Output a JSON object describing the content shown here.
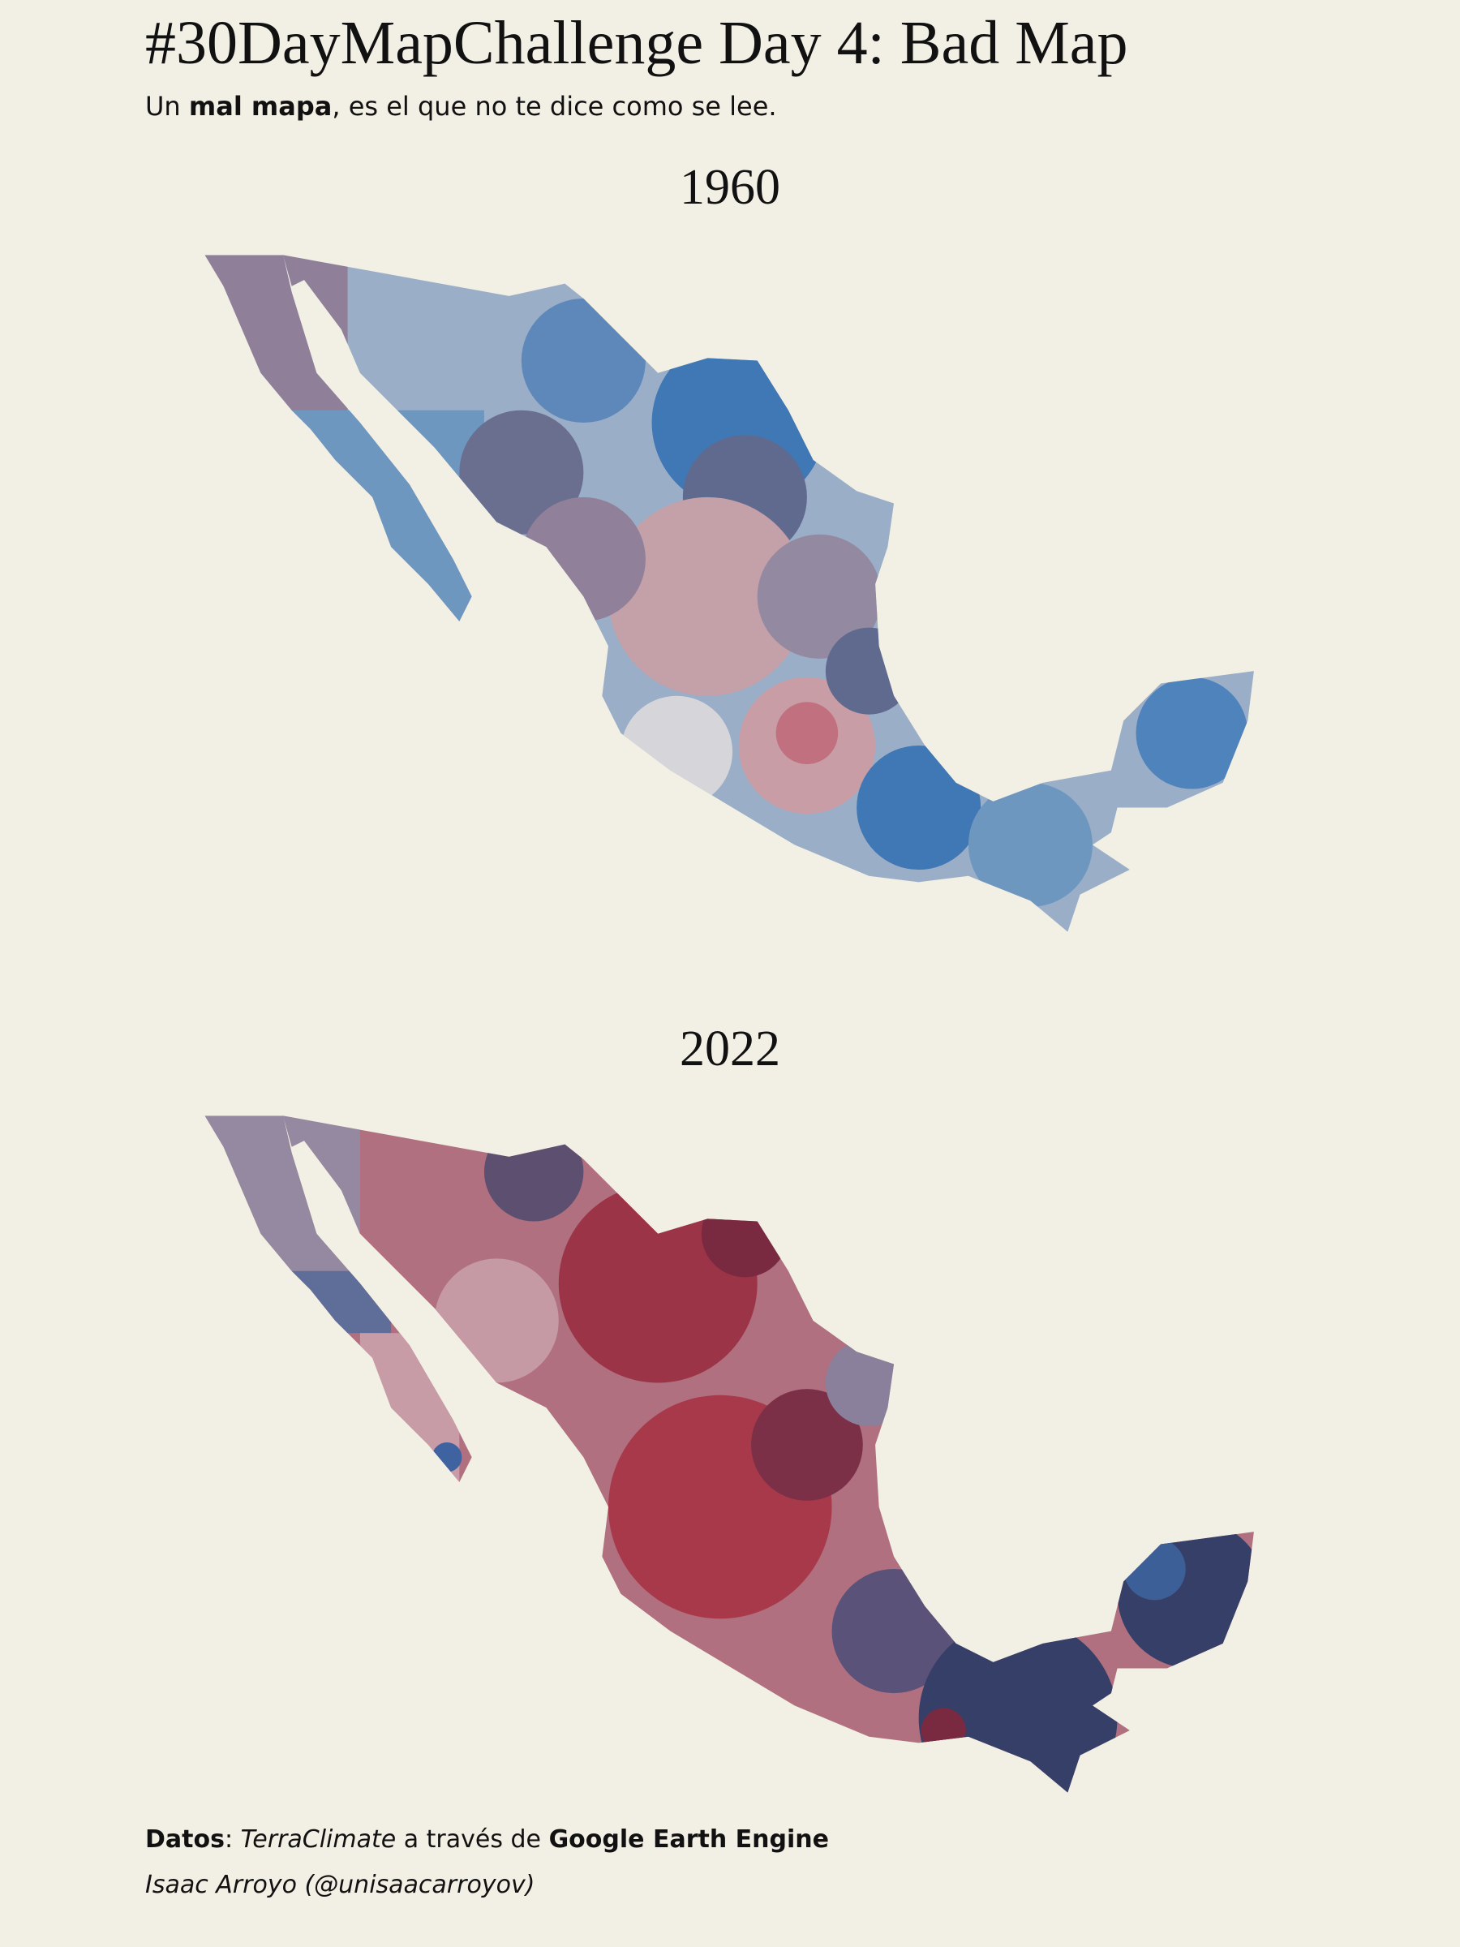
{
  "header": {
    "title": "#30DayMapChallenge Day 4: Bad Map",
    "subtitle": [
      "Un ",
      "mal mapa",
      ", es el que no te dice como se lee."
    ]
  },
  "maps": [
    {
      "title": "1960"
    },
    {
      "title": "2022"
    }
  ],
  "footer": {
    "source": [
      "Datos",
      ": ",
      "TerraClimate",
      " a través de ",
      "Google Earth Engine"
    ],
    "author": "Isaac Arroyo (@unisaacarroyov)"
  }
}
